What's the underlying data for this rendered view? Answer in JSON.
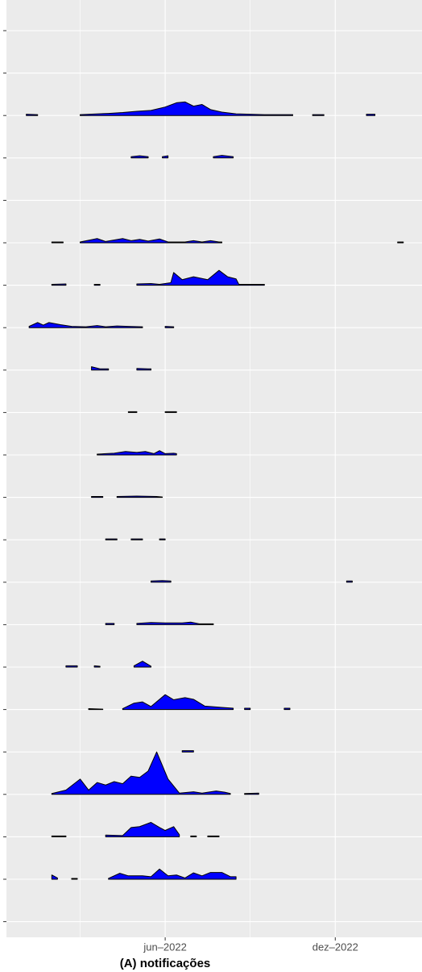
{
  "chart_data": {
    "type": "ridgeline",
    "caption": "(A) notificações",
    "fill": "#0000ff",
    "grid": true,
    "xlim": [
      -0.6,
      14.06
    ],
    "xticks": [
      {
        "value": 5,
        "label": "jun–2022"
      },
      {
        "value": 11,
        "label": "dez–2022"
      }
    ],
    "x_minor_grid": [
      2,
      8
    ],
    "categories": [
      null,
      null,
      null,
      null,
      null,
      null,
      null,
      null,
      null,
      null,
      null,
      null,
      null,
      null,
      null,
      null,
      null,
      null,
      null,
      null,
      null,
      null
    ],
    "series": [
      {
        "x": [],
        "values": []
      },
      {
        "x": [],
        "values": []
      },
      {
        "x": [
          0.1,
          0.5,
          1.0,
          2.0,
          3.0,
          3.5,
          4.0,
          4.5,
          5.0,
          5.4,
          5.7,
          6.0,
          6.3,
          6.6,
          7.0,
          7.5,
          8.0,
          8.5,
          9.0,
          9.5,
          10,
          10.2,
          10.6,
          11,
          12.1,
          12.4
        ],
        "values": [
          0.3,
          0.2,
          null,
          0.2,
          0.5,
          0.7,
          1,
          1.2,
          2,
          3,
          3.2,
          2.2,
          2.6,
          1.4,
          0.8,
          0.4,
          0.3,
          0.2,
          0.2,
          0.2,
          null,
          0.2,
          0.2,
          null,
          0.3,
          0.3
        ]
      },
      {
        "x": [
          3.8,
          4.1,
          4.4,
          4.6,
          4.9,
          5.1,
          5.3,
          6.7,
          7.0,
          7.4
        ],
        "values": [
          0.3,
          0.5,
          0.3,
          null,
          0.3,
          0.5,
          null,
          0.3,
          0.6,
          0.3
        ]
      },
      {
        "x": [],
        "values": []
      },
      {
        "x": [
          1.0,
          1.4,
          1.7,
          2.0,
          2.6,
          2.9,
          3.5,
          3.8,
          4.1,
          4.4,
          4.8,
          5.1,
          5.7,
          6.0,
          6.3,
          6.6,
          6.9,
          7.0,
          7.5,
          13.2,
          13.4
        ],
        "values": [
          0.2,
          0.2,
          null,
          0.2,
          1,
          0.3,
          1,
          0.5,
          0.8,
          0.4,
          0.9,
          0.2,
          0.2,
          0.5,
          0.2,
          0.5,
          0.2,
          0.2,
          null,
          0.2,
          0.2
        ]
      },
      {
        "x": [
          1.0,
          1.5,
          2.0,
          2.5,
          2.7,
          3.0,
          4.0,
          4.5,
          4.8,
          5.2,
          5.3,
          5.6,
          6.0,
          6.5,
          6.9,
          7.2,
          7.5,
          7.6,
          8.5
        ],
        "values": [
          0.2,
          0.3,
          null,
          0.2,
          0.2,
          null,
          0.3,
          0.4,
          0.2,
          0.6,
          3,
          1.3,
          2,
          1.3,
          3.5,
          2,
          1.5,
          0.2,
          0.2
        ]
      },
      {
        "x": [
          0.2,
          0.5,
          0.7,
          0.9,
          1.3,
          1.7,
          2.2,
          2.6,
          2.9,
          3.3,
          3.7,
          4.2,
          4.3,
          5.0,
          5.3
        ],
        "values": [
          0.3,
          1.2,
          0.6,
          1.2,
          0.7,
          0.3,
          0.2,
          0.5,
          0.2,
          0.4,
          0.3,
          0.2,
          null,
          0.3,
          0.2
        ]
      },
      {
        "x": [
          2.4,
          2.7,
          3.0,
          3.2,
          4.0,
          4.4,
          4.5
        ],
        "values": [
          0.8,
          0.3,
          0.3,
          null,
          0.4,
          0.3,
          0.3
        ]
      },
      {
        "x": [
          3.7,
          4.0,
          4.2,
          5.0,
          5.4
        ],
        "values": [
          0.2,
          0.2,
          null,
          0.2,
          0.2
        ]
      },
      {
        "x": [
          2.6,
          3.2,
          3.6,
          4.0,
          4.3,
          4.6,
          4.8,
          5.0,
          5.3,
          5.4
        ],
        "values": [
          0.2,
          0.4,
          0.8,
          0.6,
          0.8,
          0.3,
          1,
          0.3,
          0.4,
          0.3
        ]
      },
      {
        "x": [
          2.4,
          2.8,
          3.0,
          3.3,
          4.0,
          4.7,
          4.9
        ],
        "values": [
          0.2,
          0.2,
          null,
          0.2,
          0.3,
          0.2,
          0.1
        ]
      },
      {
        "x": [
          2.9,
          3.3,
          3.5,
          3.8,
          4.2,
          4.5,
          4.8,
          5.0
        ],
        "values": [
          0.2,
          0.2,
          null,
          0.2,
          0.2,
          null,
          0.2,
          0.2
        ]
      },
      {
        "x": [
          4.5,
          4.9,
          5.2,
          5.3,
          11.4,
          11.6
        ],
        "values": [
          0.3,
          0.4,
          0.3,
          null,
          0.3,
          0.3
        ]
      },
      {
        "x": [
          2.9,
          3.2,
          3.4,
          4.0,
          4.5,
          5.0,
          5.6,
          5.9,
          6.2,
          6.7
        ],
        "values": [
          0.3,
          0.3,
          null,
          0.3,
          0.5,
          0.4,
          0.4,
          0.6,
          0.2,
          0.2
        ]
      },
      {
        "x": [
          1.5,
          1.9,
          2.2,
          2.5,
          2.7,
          2.9,
          3.9,
          4.2,
          4.5
        ],
        "values": [
          0.3,
          0.3,
          null,
          0.3,
          0.2,
          null,
          0.3,
          1.4,
          0.2
        ]
      },
      {
        "x": [
          2.3,
          2.8,
          3.0,
          3.5,
          3.9,
          4.2,
          4.5,
          5.0,
          5.3,
          5.7,
          6.0,
          6.4,
          7.0,
          7.4,
          7.5,
          7.8,
          8.0,
          8.5,
          9.2,
          9.4
        ],
        "values": [
          0.2,
          0.1,
          null,
          0.2,
          1.5,
          1.8,
          0.7,
          3.5,
          2.3,
          2.8,
          2.4,
          0.8,
          0.5,
          0.3,
          null,
          0.3,
          0.3,
          null,
          0.3,
          0.3
        ]
      },
      {
        "x": [
          5.6,
          6.0
        ],
        "values": [
          0.3,
          0.3
        ]
      },
      {
        "x": [
          1.0,
          1.5,
          2.0,
          2.3,
          2.6,
          2.9,
          3.2,
          3.5,
          3.8,
          4.1,
          4.4,
          4.7,
          5.1,
          5.5,
          6.0,
          6.3,
          6.8,
          7.1,
          7.3,
          7.5,
          7.8,
          8.3
        ],
        "values": [
          0.2,
          1,
          3.6,
          1,
          2.8,
          2.2,
          3,
          2.5,
          4.3,
          4,
          5.5,
          10,
          3.6,
          0.3,
          0.6,
          0.3,
          0.8,
          0.5,
          0.2,
          null,
          0.2,
          0.3
        ]
      },
      {
        "x": [
          1.0,
          1.5,
          1.8,
          2.9,
          3.5,
          3.8,
          4.1,
          4.5,
          4.8,
          5.0,
          5.3,
          5.5,
          5.6,
          5.9,
          6.1,
          6.3,
          6.5,
          6.9
        ],
        "values": [
          0.2,
          0.2,
          null,
          0.4,
          0.3,
          2.2,
          2.4,
          3.4,
          2.2,
          1.5,
          2.4,
          0.5,
          null,
          0.2,
          0.2,
          null,
          0.2,
          0.2
        ]
      },
      {
        "x": [
          1.0,
          1.2,
          1.3,
          1.7,
          1.9,
          2.1,
          3.0,
          3.4,
          3.7,
          4.2,
          4.5,
          4.8,
          5.1,
          5.4,
          5.7,
          6.0,
          6.3,
          6.6,
          7.0,
          7.3,
          7.5
        ],
        "values": [
          1,
          0.3,
          null,
          0.2,
          0.2,
          null,
          0.2,
          1.4,
          0.8,
          0.8,
          0.6,
          2.4,
          0.8,
          1,
          0.3,
          1.5,
          0.8,
          1.6,
          1.6,
          0.6,
          0.6
        ]
      },
      {
        "x": [],
        "values": []
      }
    ]
  }
}
